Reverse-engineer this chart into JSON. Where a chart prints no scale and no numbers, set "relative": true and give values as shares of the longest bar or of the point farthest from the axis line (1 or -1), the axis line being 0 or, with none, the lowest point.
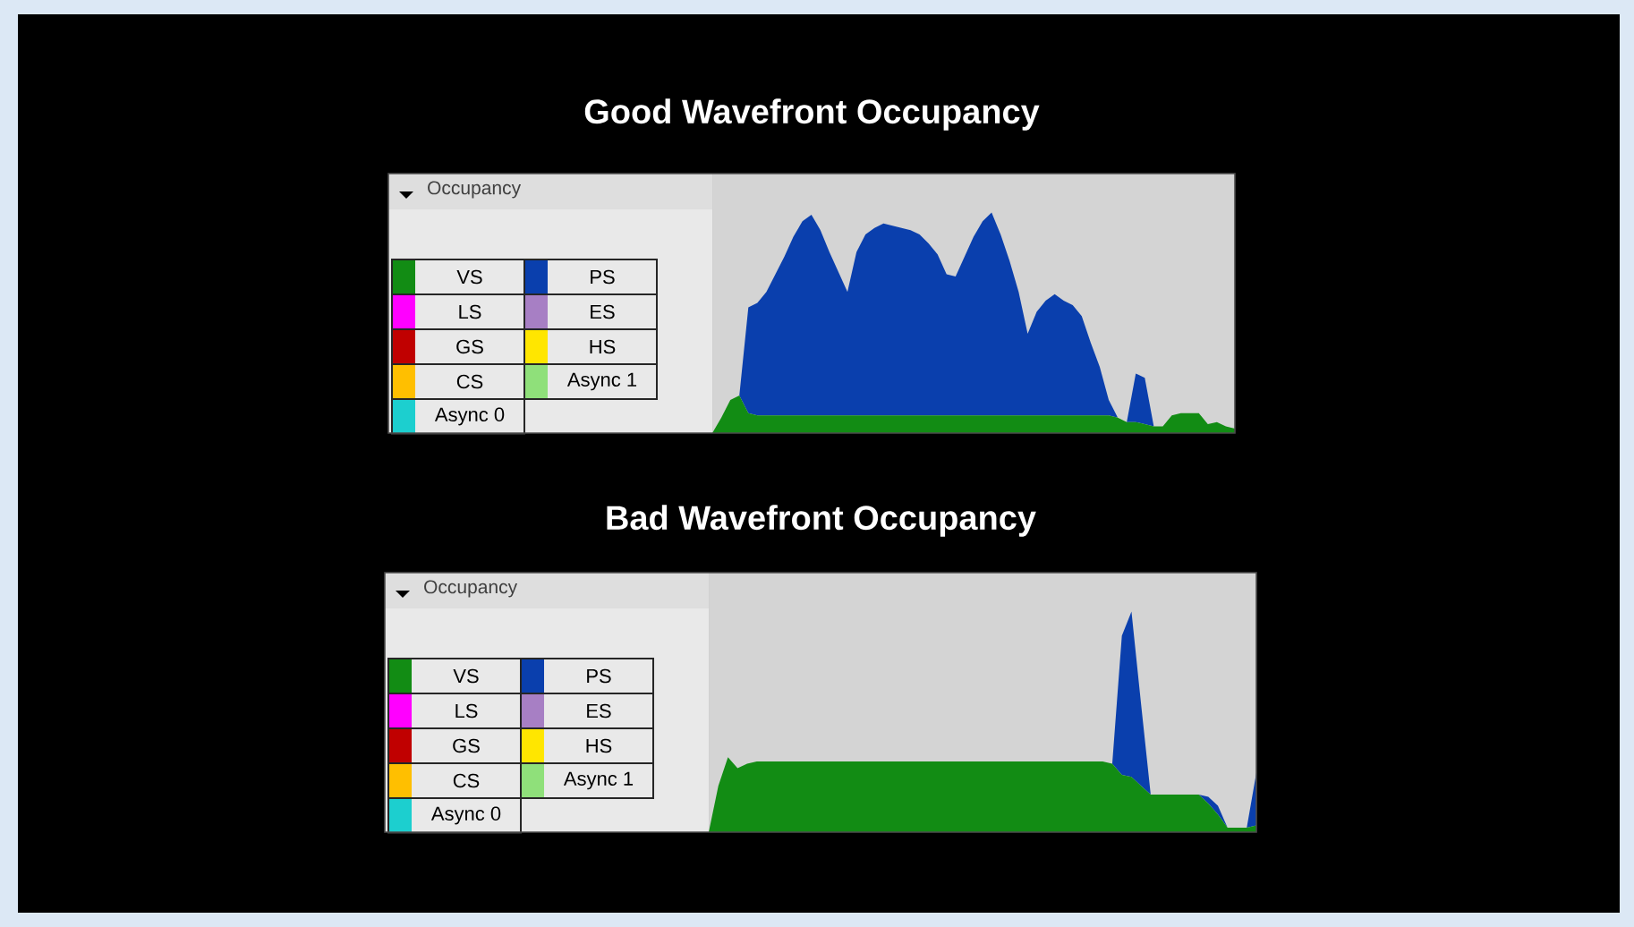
{
  "chart_data": [
    {
      "type": "area",
      "title": "Good Wavefront Occupancy",
      "ylabel": "Occupancy",
      "relative": true,
      "stacked": true,
      "legend": "left",
      "categories": [
        null,
        null,
        null,
        null,
        null,
        null,
        null,
        null,
        null,
        null,
        null,
        null,
        null,
        null,
        null,
        null,
        null,
        null,
        null,
        null,
        null,
        null,
        null,
        null,
        null,
        null,
        null,
        null,
        null,
        null,
        null,
        null,
        null,
        null,
        null,
        null,
        null,
        null,
        null,
        null,
        null,
        null,
        null,
        null,
        null,
        null,
        null,
        null,
        null,
        null,
        null,
        null,
        null,
        null,
        null,
        null,
        null,
        null,
        null
      ],
      "series": [
        {
          "name": "VS",
          "color": "#128c14",
          "values": [
            0,
            0.07,
            0.15,
            0.17,
            0.09,
            0.08,
            0.08,
            0.08,
            0.08,
            0.08,
            0.08,
            0.08,
            0.08,
            0.08,
            0.08,
            0.08,
            0.08,
            0.08,
            0.08,
            0.08,
            0.08,
            0.08,
            0.08,
            0.08,
            0.08,
            0.08,
            0.08,
            0.08,
            0.08,
            0.08,
            0.08,
            0.08,
            0.08,
            0.08,
            0.08,
            0.08,
            0.08,
            0.08,
            0.08,
            0.08,
            0.08,
            0.08,
            0.08,
            0.08,
            0.08,
            0.07,
            0.05,
            0.05,
            0.04,
            0.03,
            0.03,
            0.08,
            0.09,
            0.09,
            0.09,
            0.04,
            0.05,
            0.03,
            0.02
          ]
        },
        {
          "name": "PS",
          "color": "#0a3fad",
          "values": [
            0,
            0,
            0,
            0,
            0.48,
            0.51,
            0.56,
            0.64,
            0.72,
            0.81,
            0.88,
            0.91,
            0.84,
            0.74,
            0.65,
            0.56,
            0.74,
            0.82,
            0.85,
            0.87,
            0.86,
            0.85,
            0.84,
            0.82,
            0.78,
            0.73,
            0.64,
            0.63,
            0.72,
            0.81,
            0.88,
            0.92,
            0.82,
            0.7,
            0.56,
            0.37,
            0.47,
            0.52,
            0.55,
            0.52,
            0.5,
            0.45,
            0.33,
            0.22,
            0.07,
            0,
            0,
            0.22,
            0.21,
            0,
            0,
            0,
            0,
            0,
            0,
            0,
            0,
            0,
            0
          ]
        },
        {
          "name": "LS",
          "color": "#ff00ff",
          "values": [
            null,
            null,
            null,
            null,
            null,
            null,
            null,
            null,
            null,
            null,
            null,
            null,
            null,
            null,
            null,
            null,
            null,
            null,
            null,
            null,
            null,
            null,
            null,
            null,
            null,
            null,
            null,
            null,
            null,
            null,
            null,
            null,
            null,
            null,
            null,
            null,
            null,
            null,
            null,
            null,
            null,
            null,
            null,
            null,
            null,
            null,
            null,
            null,
            null,
            null,
            null,
            null,
            null,
            null,
            null,
            null,
            null,
            null,
            null
          ]
        },
        {
          "name": "ES",
          "color": "#a77fc4",
          "values": [
            null,
            null,
            null,
            null,
            null,
            null,
            null,
            null,
            null,
            null,
            null,
            null,
            null,
            null,
            null,
            null,
            null,
            null,
            null,
            null,
            null,
            null,
            null,
            null,
            null,
            null,
            null,
            null,
            null,
            null,
            null,
            null,
            null,
            null,
            null,
            null,
            null,
            null,
            null,
            null,
            null,
            null,
            null,
            null,
            null,
            null,
            null,
            null,
            null,
            null,
            null,
            null,
            null,
            null,
            null,
            null,
            null,
            null,
            null
          ]
        },
        {
          "name": "GS",
          "color": "#c00000",
          "values": [
            null,
            null,
            null,
            null,
            null,
            null,
            null,
            null,
            null,
            null,
            null,
            null,
            null,
            null,
            null,
            null,
            null,
            null,
            null,
            null,
            null,
            null,
            null,
            null,
            null,
            null,
            null,
            null,
            null,
            null,
            null,
            null,
            null,
            null,
            null,
            null,
            null,
            null,
            null,
            null,
            null,
            null,
            null,
            null,
            null,
            null,
            null,
            null,
            null,
            null,
            null,
            null,
            null,
            null,
            null,
            null,
            null,
            null,
            null
          ]
        },
        {
          "name": "HS",
          "color": "#ffe600",
          "values": [
            null,
            null,
            null,
            null,
            null,
            null,
            null,
            null,
            null,
            null,
            null,
            null,
            null,
            null,
            null,
            null,
            null,
            null,
            null,
            null,
            null,
            null,
            null,
            null,
            null,
            null,
            null,
            null,
            null,
            null,
            null,
            null,
            null,
            null,
            null,
            null,
            null,
            null,
            null,
            null,
            null,
            null,
            null,
            null,
            null,
            null,
            null,
            null,
            null,
            null,
            null,
            null,
            null,
            null,
            null,
            null,
            null,
            null,
            null
          ]
        },
        {
          "name": "CS",
          "color": "#ffbf00",
          "values": [
            null,
            null,
            null,
            null,
            null,
            null,
            null,
            null,
            null,
            null,
            null,
            null,
            null,
            null,
            null,
            null,
            null,
            null,
            null,
            null,
            null,
            null,
            null,
            null,
            null,
            null,
            null,
            null,
            null,
            null,
            null,
            null,
            null,
            null,
            null,
            null,
            null,
            null,
            null,
            null,
            null,
            null,
            null,
            null,
            null,
            null,
            null,
            null,
            null,
            null,
            null,
            null,
            null,
            null,
            null,
            null,
            null,
            null,
            null
          ]
        },
        {
          "name": "Async 1",
          "color": "#8fe07a",
          "values": [
            null,
            null,
            null,
            null,
            null,
            null,
            null,
            null,
            null,
            null,
            null,
            null,
            null,
            null,
            null,
            null,
            null,
            null,
            null,
            null,
            null,
            null,
            null,
            null,
            null,
            null,
            null,
            null,
            null,
            null,
            null,
            null,
            null,
            null,
            null,
            null,
            null,
            null,
            null,
            null,
            null,
            null,
            null,
            null,
            null,
            null,
            null,
            null,
            null,
            null,
            null,
            null,
            null,
            null,
            null,
            null,
            null,
            null,
            null
          ]
        },
        {
          "name": "Async 0",
          "color": "#1ccfcf",
          "values": [
            null,
            null,
            null,
            null,
            null,
            null,
            null,
            null,
            null,
            null,
            null,
            null,
            null,
            null,
            null,
            null,
            null,
            null,
            null,
            null,
            null,
            null,
            null,
            null,
            null,
            null,
            null,
            null,
            null,
            null,
            null,
            null,
            null,
            null,
            null,
            null,
            null,
            null,
            null,
            null,
            null,
            null,
            null,
            null,
            null,
            null,
            null,
            null,
            null,
            null,
            null,
            null,
            null,
            null,
            null,
            null,
            null,
            null,
            null
          ]
        }
      ]
    },
    {
      "type": "area",
      "title": "Bad Wavefront Occupancy",
      "ylabel": "Occupancy",
      "relative": true,
      "stacked": true,
      "legend": "left",
      "categories": [
        null,
        null,
        null,
        null,
        null,
        null,
        null,
        null,
        null,
        null,
        null,
        null,
        null,
        null,
        null,
        null,
        null,
        null,
        null,
        null,
        null,
        null,
        null,
        null,
        null,
        null,
        null,
        null,
        null,
        null,
        null,
        null,
        null,
        null,
        null,
        null,
        null,
        null,
        null,
        null,
        null,
        null,
        null,
        null,
        null,
        null,
        null,
        null,
        null,
        null,
        null,
        null,
        null,
        null,
        null,
        null,
        null,
        null
      ],
      "series": [
        {
          "name": "VS",
          "color": "#128c14",
          "values": [
            0,
            0.21,
            0.34,
            0.29,
            0.31,
            0.32,
            0.32,
            0.32,
            0.32,
            0.32,
            0.32,
            0.32,
            0.32,
            0.32,
            0.32,
            0.32,
            0.32,
            0.32,
            0.32,
            0.32,
            0.32,
            0.32,
            0.32,
            0.32,
            0.32,
            0.32,
            0.32,
            0.32,
            0.32,
            0.32,
            0.32,
            0.32,
            0.32,
            0.32,
            0.32,
            0.32,
            0.32,
            0.32,
            0.32,
            0.32,
            0.32,
            0.32,
            0.31,
            0.26,
            0.25,
            0.21,
            0.17,
            0.17,
            0.17,
            0.17,
            0.17,
            0.17,
            0.13,
            0.08,
            0.02,
            0.02,
            0.02,
            0.03
          ]
        },
        {
          "name": "PS",
          "color": "#0a3fad",
          "values": [
            0,
            0,
            0,
            0,
            0,
            0,
            0,
            0,
            0,
            0,
            0,
            0,
            0,
            0,
            0,
            0,
            0,
            0,
            0,
            0,
            0,
            0,
            0,
            0,
            0,
            0,
            0,
            0,
            0,
            0,
            0,
            0,
            0,
            0,
            0,
            0,
            0,
            0,
            0,
            0,
            0,
            0,
            0,
            0.63,
            0.75,
            0.37,
            0,
            0,
            0,
            0,
            0,
            0,
            0.03,
            0.04,
            0,
            0,
            0,
            0.24
          ]
        },
        {
          "name": "LS",
          "color": "#ff00ff",
          "values": [
            null,
            null,
            null,
            null,
            null,
            null,
            null,
            null,
            null,
            null,
            null,
            null,
            null,
            null,
            null,
            null,
            null,
            null,
            null,
            null,
            null,
            null,
            null,
            null,
            null,
            null,
            null,
            null,
            null,
            null,
            null,
            null,
            null,
            null,
            null,
            null,
            null,
            null,
            null,
            null,
            null,
            null,
            null,
            null,
            null,
            null,
            null,
            null,
            null,
            null,
            null,
            null,
            null,
            null,
            null,
            null,
            null,
            null
          ]
        },
        {
          "name": "ES",
          "color": "#a77fc4",
          "values": [
            null,
            null,
            null,
            null,
            null,
            null,
            null,
            null,
            null,
            null,
            null,
            null,
            null,
            null,
            null,
            null,
            null,
            null,
            null,
            null,
            null,
            null,
            null,
            null,
            null,
            null,
            null,
            null,
            null,
            null,
            null,
            null,
            null,
            null,
            null,
            null,
            null,
            null,
            null,
            null,
            null,
            null,
            null,
            null,
            null,
            null,
            null,
            null,
            null,
            null,
            null,
            null,
            null,
            null,
            null,
            null,
            null,
            null
          ]
        },
        {
          "name": "GS",
          "color": "#c00000",
          "values": [
            null,
            null,
            null,
            null,
            null,
            null,
            null,
            null,
            null,
            null,
            null,
            null,
            null,
            null,
            null,
            null,
            null,
            null,
            null,
            null,
            null,
            null,
            null,
            null,
            null,
            null,
            null,
            null,
            null,
            null,
            null,
            null,
            null,
            null,
            null,
            null,
            null,
            null,
            null,
            null,
            null,
            null,
            null,
            null,
            null,
            null,
            null,
            null,
            null,
            null,
            null,
            null,
            null,
            null,
            null,
            null,
            null,
            null
          ]
        },
        {
          "name": "HS",
          "color": "#ffe600",
          "values": [
            null,
            null,
            null,
            null,
            null,
            null,
            null,
            null,
            null,
            null,
            null,
            null,
            null,
            null,
            null,
            null,
            null,
            null,
            null,
            null,
            null,
            null,
            null,
            null,
            null,
            null,
            null,
            null,
            null,
            null,
            null,
            null,
            null,
            null,
            null,
            null,
            null,
            null,
            null,
            null,
            null,
            null,
            null,
            null,
            null,
            null,
            null,
            null,
            null,
            null,
            null,
            null,
            null,
            null,
            null,
            null,
            null,
            null
          ]
        },
        {
          "name": "CS",
          "color": "#ffbf00",
          "values": [
            null,
            null,
            null,
            null,
            null,
            null,
            null,
            null,
            null,
            null,
            null,
            null,
            null,
            null,
            null,
            null,
            null,
            null,
            null,
            null,
            null,
            null,
            null,
            null,
            null,
            null,
            null,
            null,
            null,
            null,
            null,
            null,
            null,
            null,
            null,
            null,
            null,
            null,
            null,
            null,
            null,
            null,
            null,
            null,
            null,
            null,
            null,
            null,
            null,
            null,
            null,
            null,
            null,
            null,
            null,
            null,
            null,
            null
          ]
        },
        {
          "name": "Async 1",
          "color": "#8fe07a",
          "values": [
            null,
            null,
            null,
            null,
            null,
            null,
            null,
            null,
            null,
            null,
            null,
            null,
            null,
            null,
            null,
            null,
            null,
            null,
            null,
            null,
            null,
            null,
            null,
            null,
            null,
            null,
            null,
            null,
            null,
            null,
            null,
            null,
            null,
            null,
            null,
            null,
            null,
            null,
            null,
            null,
            null,
            null,
            null,
            null,
            null,
            null,
            null,
            null,
            null,
            null,
            null,
            null,
            null,
            null,
            null,
            null,
            null,
            null
          ]
        },
        {
          "name": "Async 0",
          "color": "#1ccfcf",
          "values": [
            null,
            null,
            null,
            null,
            null,
            null,
            null,
            null,
            null,
            null,
            null,
            null,
            null,
            null,
            null,
            null,
            null,
            null,
            null,
            null,
            null,
            null,
            null,
            null,
            null,
            null,
            null,
            null,
            null,
            null,
            null,
            null,
            null,
            null,
            null,
            null,
            null,
            null,
            null,
            null,
            null,
            null,
            null,
            null,
            null,
            null,
            null,
            null,
            null,
            null,
            null,
            null,
            null,
            null,
            null,
            null,
            null,
            null
          ]
        }
      ]
    }
  ]
}
